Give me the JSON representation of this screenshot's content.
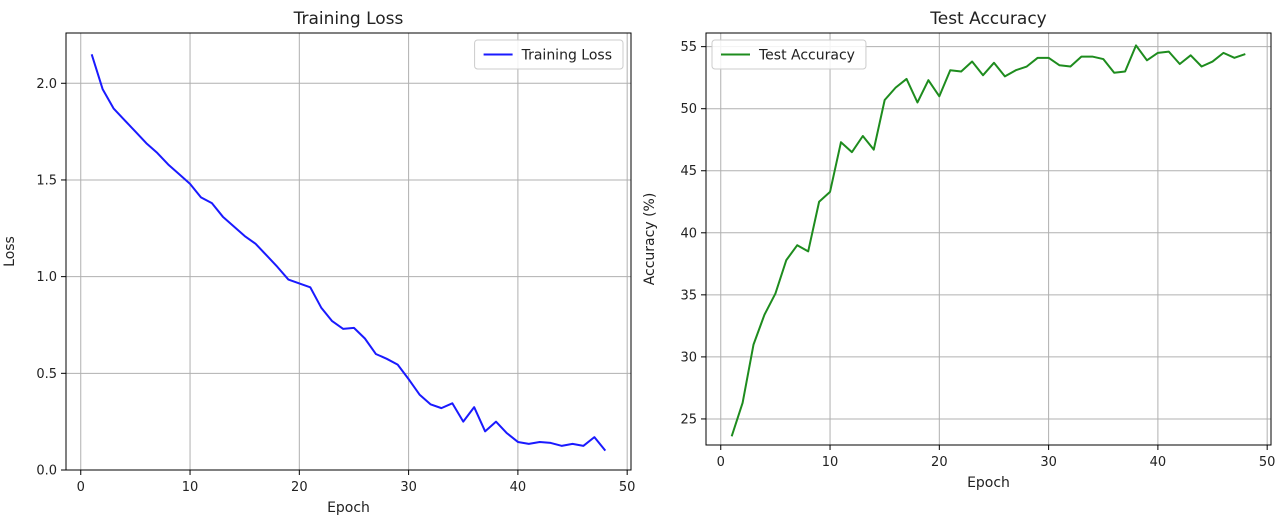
{
  "chart_data": [
    {
      "type": "line",
      "title": "Training Loss",
      "xlabel": "Epoch",
      "ylabel": "Loss",
      "xlim": [
        -1.35,
        50.35
      ],
      "ylim": [
        0.0,
        2.26
      ],
      "xticks": [
        0,
        10,
        20,
        30,
        40,
        50
      ],
      "yticks": [
        0.0,
        0.5,
        1.0,
        1.5,
        2.0
      ],
      "ytick_labels": [
        "0.0",
        "0.5",
        "1.0",
        "1.5",
        "2.0"
      ],
      "grid": true,
      "legend": "upper right",
      "series": [
        {
          "name": "Training Loss",
          "color": "#1a1aff",
          "x": [
            1,
            2,
            3,
            4,
            5,
            6,
            7,
            8,
            9,
            10,
            11,
            12,
            13,
            14,
            15,
            16,
            17,
            18,
            19,
            20,
            21,
            22,
            23,
            24,
            25,
            26,
            27,
            28,
            29,
            30,
            31,
            32,
            33,
            34,
            35,
            36,
            37,
            38,
            39,
            40,
            41,
            42,
            43,
            44,
            45,
            46,
            47,
            48
          ],
          "values": [
            2.15,
            1.97,
            1.87,
            1.81,
            1.75,
            1.69,
            1.64,
            1.58,
            1.53,
            1.48,
            1.41,
            1.38,
            1.31,
            1.26,
            1.21,
            1.17,
            1.11,
            1.05,
            0.985,
            0.965,
            0.945,
            0.84,
            0.77,
            0.73,
            0.735,
            0.68,
            0.6,
            0.575,
            0.545,
            0.47,
            0.39,
            0.34,
            0.32,
            0.345,
            0.25,
            0.325,
            0.2,
            0.25,
            0.19,
            0.145,
            0.135,
            0.145,
            0.14,
            0.125,
            0.135,
            0.125,
            0.17,
            0.1
          ]
        }
      ]
    },
    {
      "type": "line",
      "title": "Test Accuracy",
      "xlabel": "Epoch",
      "ylabel": "Accuracy (%)",
      "xlim": [
        -1.35,
        50.35
      ],
      "ylim": [
        22.9,
        56.1
      ],
      "xticks": [
        0,
        10,
        20,
        30,
        40,
        50
      ],
      "yticks": [
        25,
        30,
        35,
        40,
        45,
        50,
        55
      ],
      "ytick_labels": [
        "25",
        "30",
        "35",
        "40",
        "45",
        "50",
        "55"
      ],
      "grid": true,
      "legend": "upper left",
      "series": [
        {
          "name": "Test Accuracy",
          "color": "#1e8c1e",
          "x": [
            1,
            2,
            3,
            4,
            5,
            6,
            7,
            8,
            9,
            10,
            11,
            12,
            13,
            14,
            15,
            16,
            17,
            18,
            19,
            20,
            21,
            22,
            23,
            24,
            25,
            26,
            27,
            28,
            29,
            30,
            31,
            32,
            33,
            34,
            35,
            36,
            37,
            38,
            39,
            40,
            41,
            42,
            43,
            44,
            45,
            46,
            47,
            48
          ],
          "values": [
            23.6,
            26.3,
            31.0,
            33.4,
            35.1,
            37.8,
            39.0,
            38.5,
            42.5,
            43.3,
            47.3,
            46.5,
            47.8,
            46.7,
            50.7,
            51.7,
            52.4,
            50.5,
            52.3,
            51.0,
            53.1,
            53.0,
            53.8,
            52.7,
            53.7,
            52.6,
            53.1,
            53.4,
            54.1,
            54.1,
            53.5,
            53.4,
            54.2,
            54.2,
            54.0,
            52.9,
            53.0,
            55.1,
            53.9,
            54.5,
            54.6,
            53.6,
            54.3,
            53.4,
            53.8,
            54.5,
            54.1,
            54.4
          ]
        }
      ]
    }
  ]
}
